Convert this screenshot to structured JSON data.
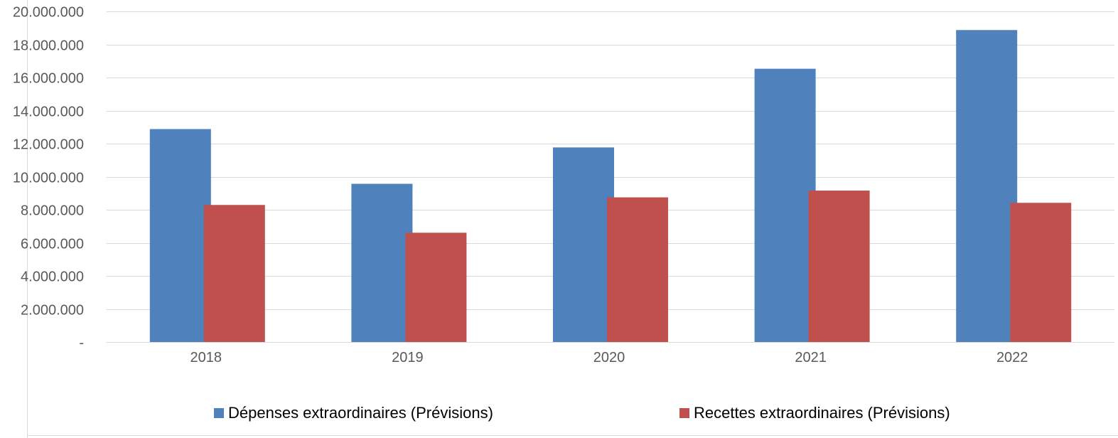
{
  "chart_data": {
    "type": "bar",
    "categories": [
      "2018",
      "2019",
      "2020",
      "2021",
      "2022"
    ],
    "series": [
      {
        "name": "Dépenses extraordinaires (Prévisions)",
        "values": [
          12880000,
          9570000,
          11770000,
          16530000,
          18870000
        ],
        "color": "#4F81BD"
      },
      {
        "name": "Recettes extraordinaires (Prévisions)",
        "values": [
          8290000,
          6610000,
          8750000,
          9160000,
          8420000
        ],
        "color": "#C0504D"
      }
    ],
    "ylim": [
      0,
      20000000
    ],
    "yticks": [
      0,
      2000000,
      4000000,
      6000000,
      8000000,
      10000000,
      12000000,
      14000000,
      16000000,
      18000000,
      20000000
    ],
    "ytick_labels": [
      "-",
      "2.000.000",
      "4.000.000",
      "6.000.000",
      "8.000.000",
      "10.000.000",
      "12.000.000",
      "14.000.000",
      "16.000.000",
      "18.000.000",
      "20.000.000"
    ],
    "grid": true,
    "legend_position": "bottom",
    "title": "",
    "xlabel": "",
    "ylabel": ""
  },
  "legend": {
    "items": [
      {
        "label": "Dépenses extraordinaires (Prévisions)",
        "color": "#4F81BD"
      },
      {
        "label": "Recettes extraordinaires (Prévisions)",
        "color": "#C0504D"
      }
    ]
  },
  "colors": {
    "grid": "#D9D9D9",
    "axis_text": "#595959",
    "frame": "#D9D9D9"
  }
}
